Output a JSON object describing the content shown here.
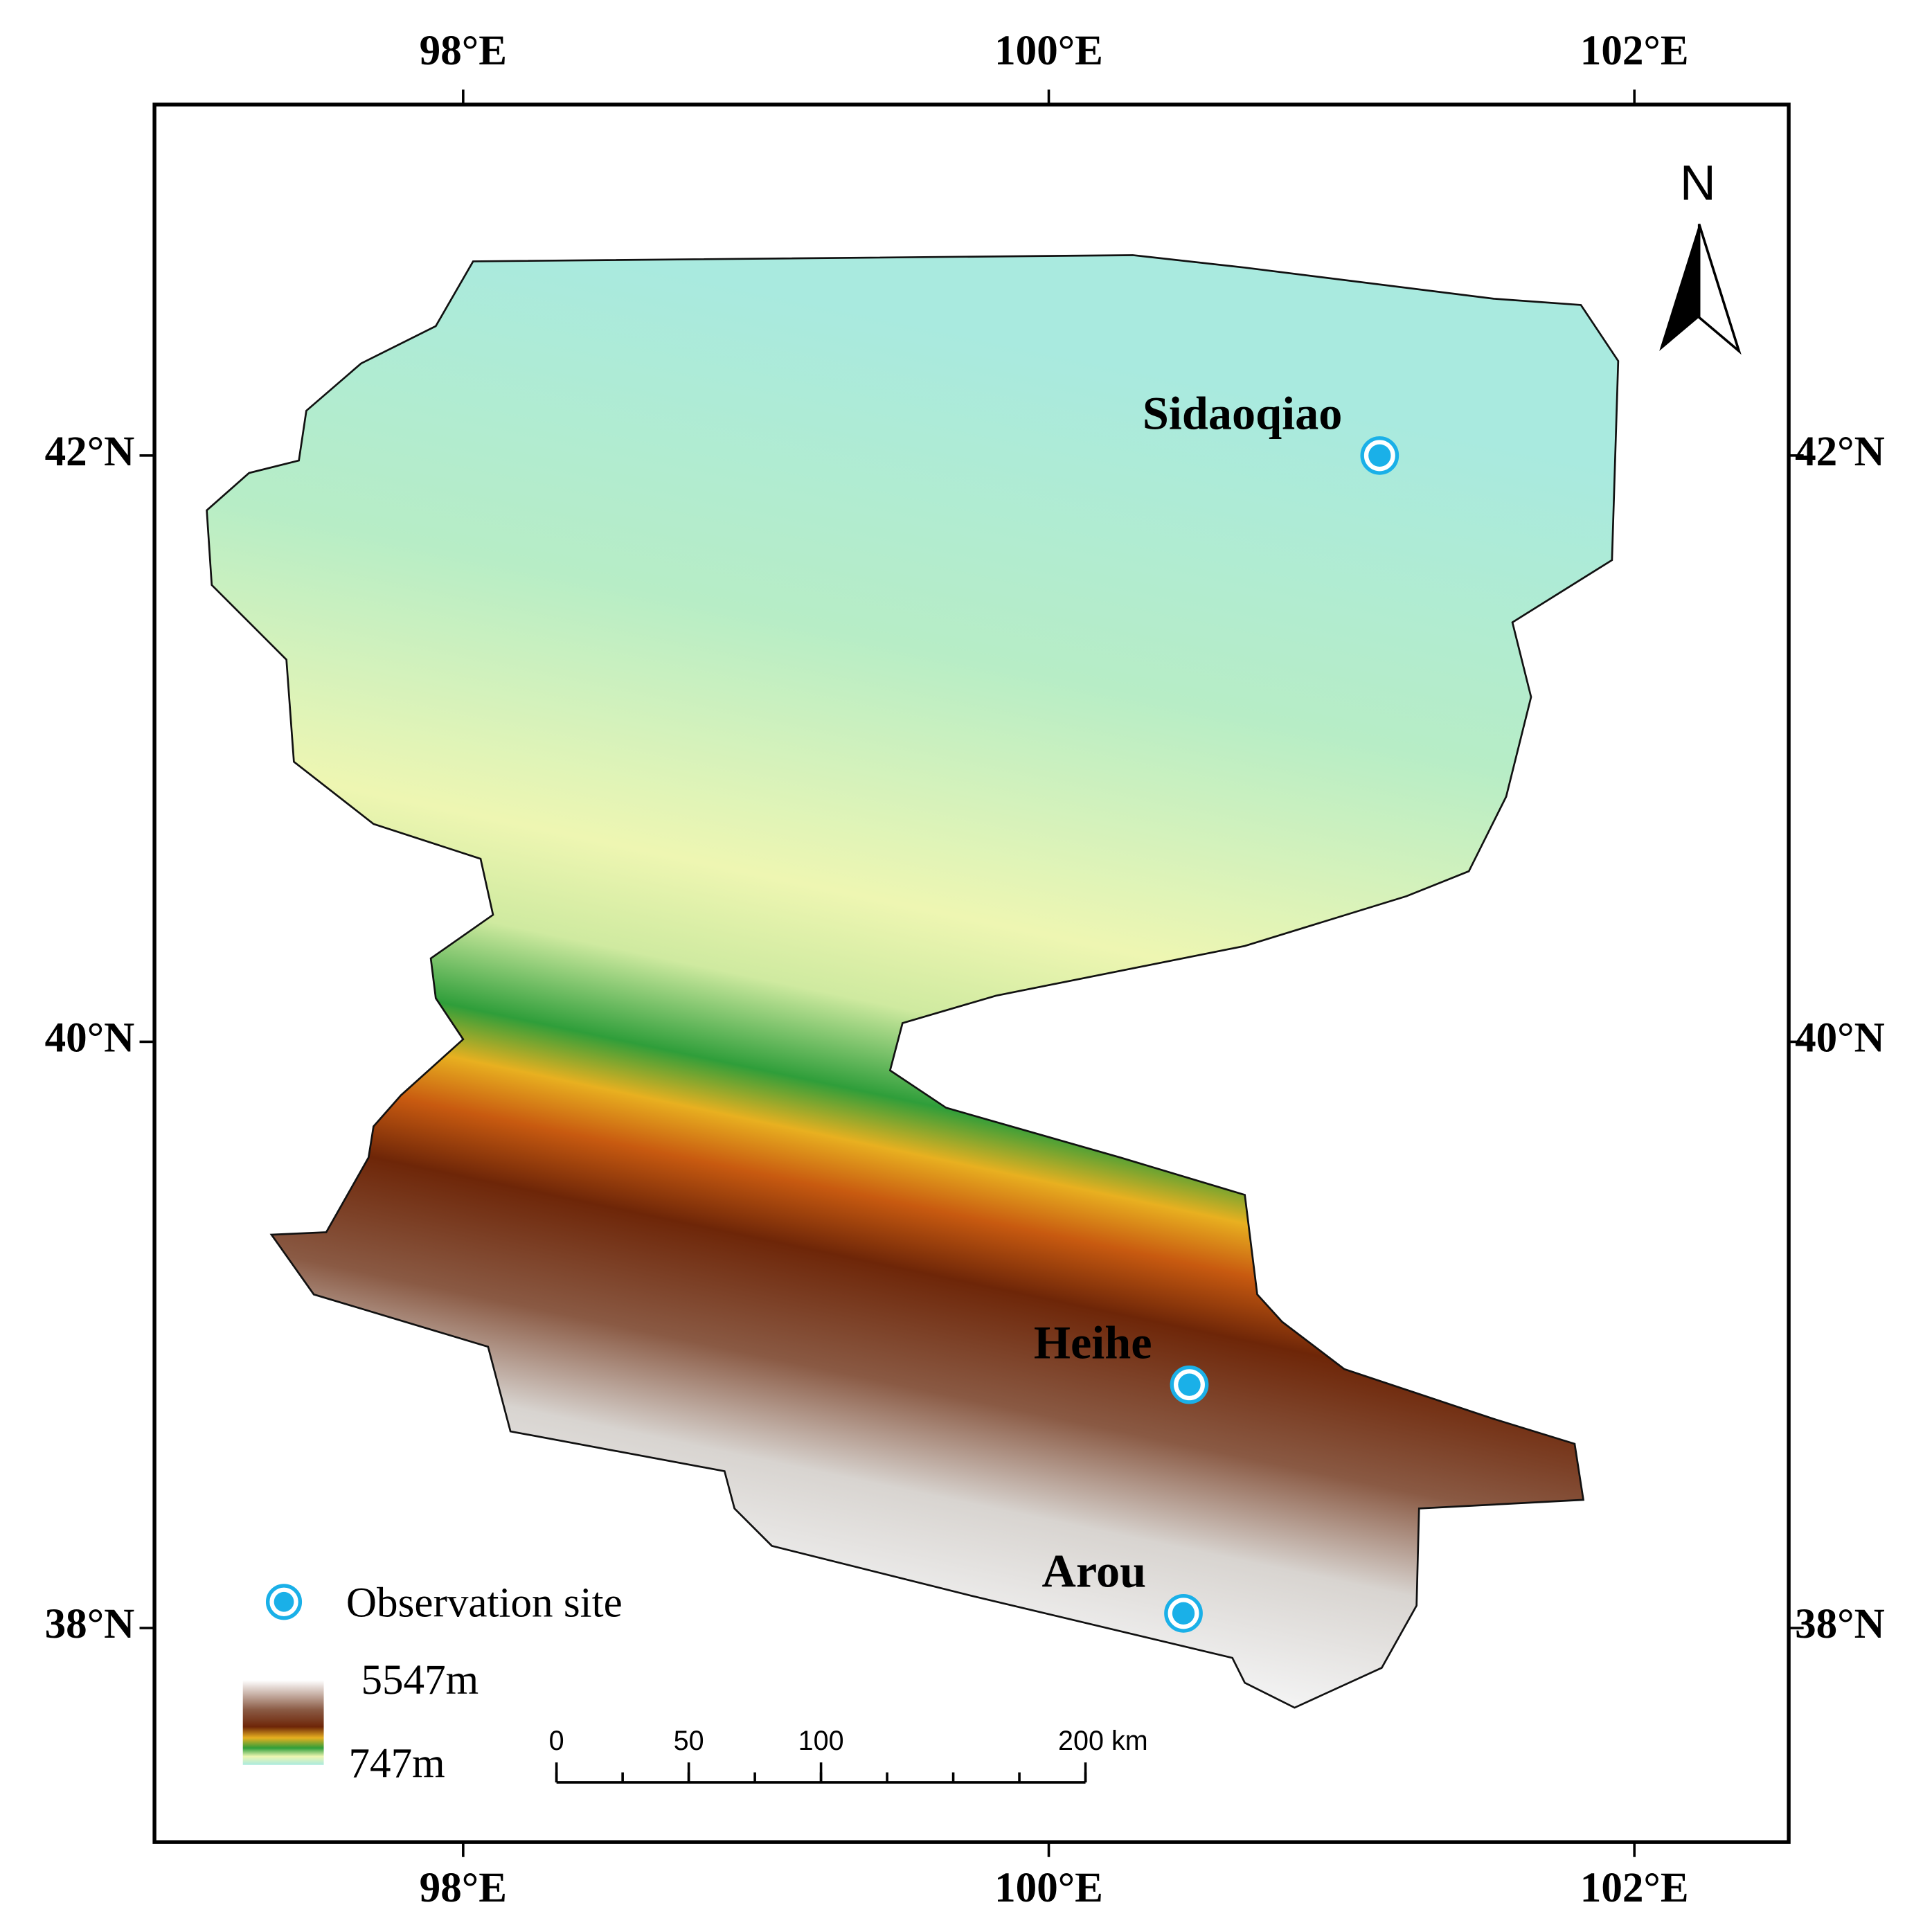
{
  "map": {
    "lon_ticks": [
      {
        "value": 98,
        "label": "98°E"
      },
      {
        "value": 100,
        "label": "100°E"
      },
      {
        "value": 102,
        "label": "102°E"
      }
    ],
    "lat_ticks": [
      {
        "value": 42,
        "label": "42°N"
      },
      {
        "value": 40,
        "label": "40°N"
      },
      {
        "value": 38,
        "label": "38°N"
      }
    ],
    "north": "N",
    "sites": [
      {
        "name": "Sidaoqiao",
        "lon": 101.13,
        "lat": 42.0
      },
      {
        "name": "Heihe",
        "lon": 100.48,
        "lat": 38.83
      },
      {
        "name": "Arou",
        "lon": 100.46,
        "lat": 38.05
      }
    ],
    "legend": {
      "site": "Observation site",
      "elevation_max": {
        "value": 5547,
        "label": "5547m"
      },
      "elevation_min": {
        "value": 747,
        "label": "747m"
      }
    },
    "scale_bar": {
      "ticks": [
        0,
        50,
        100,
        {
          "value": 200,
          "label": "200 km"
        }
      ]
    }
  }
}
